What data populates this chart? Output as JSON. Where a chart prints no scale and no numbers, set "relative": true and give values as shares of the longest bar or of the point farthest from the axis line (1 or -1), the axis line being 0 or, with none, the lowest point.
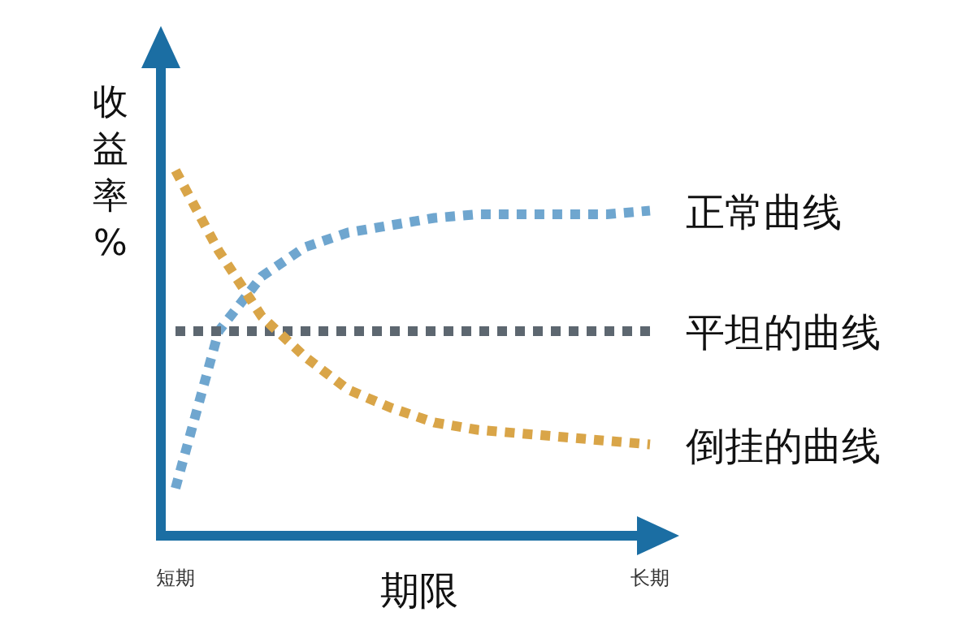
{
  "chart_data": {
    "type": "line",
    "relative": true,
    "xlabel": "期限",
    "ylabel": "收益率 %",
    "line_style": "dotted",
    "categories": [
      "短期",
      null,
      null,
      null,
      null,
      null,
      null,
      null,
      null,
      null,
      null,
      "长期"
    ],
    "series": [
      {
        "name": "正常曲线",
        "color": "#6fa6cf",
        "values": [
          0.13,
          0.56,
          0.71,
          0.79,
          0.83,
          0.85,
          0.87,
          0.88,
          0.88,
          0.88,
          0.88,
          0.89
        ]
      },
      {
        "name": "平坦的曲线",
        "color": "#5d6770",
        "values": [
          0.56,
          0.56,
          0.56,
          0.56,
          0.56,
          0.56,
          0.56,
          0.56,
          0.56,
          0.56,
          0.56,
          0.56
        ]
      },
      {
        "name": "倒挂的曲线",
        "color": "#d9a548",
        "values": [
          1,
          0.78,
          0.6,
          0.49,
          0.4,
          0.35,
          0.31,
          0.29,
          0.28,
          0.27,
          0.26,
          0.25
        ]
      }
    ]
  }
}
